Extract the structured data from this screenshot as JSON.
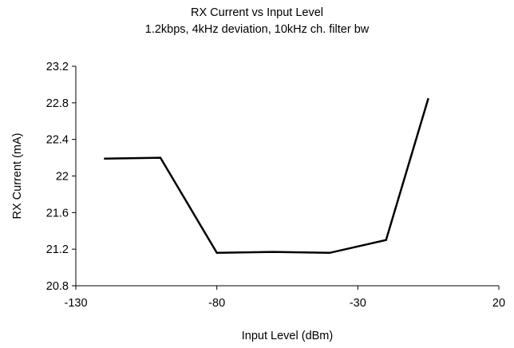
{
  "chart_data": {
    "type": "line",
    "title": "RX Current vs Input Level",
    "subtitle": "1.2kbps, 4kHz deviation, 10kHz ch. filter bw",
    "xlabel": "Input Level (dBm)",
    "ylabel": "RX Current (mA)",
    "xlim": [
      -130,
      20
    ],
    "ylim": [
      20.8,
      23.2
    ],
    "xticks": [
      -130,
      -80,
      -30,
      20
    ],
    "yticks": [
      20.8,
      21.2,
      21.6,
      22,
      22.4,
      22.8,
      23.2
    ],
    "xtick_labels": [
      "-130",
      "-80",
      "-30",
      "20"
    ],
    "ytick_labels": [
      "20.8",
      "21.2",
      "21.6",
      "22",
      "22.4",
      "22.8",
      "23.2"
    ],
    "grid": false,
    "series": [
      {
        "x": [
          -120,
          -100,
          -80,
          -60,
          -40,
          -20,
          -5
        ],
        "y": [
          22.19,
          22.2,
          21.16,
          21.17,
          21.16,
          21.3,
          22.85
        ]
      }
    ],
    "line_color": "#000000"
  }
}
